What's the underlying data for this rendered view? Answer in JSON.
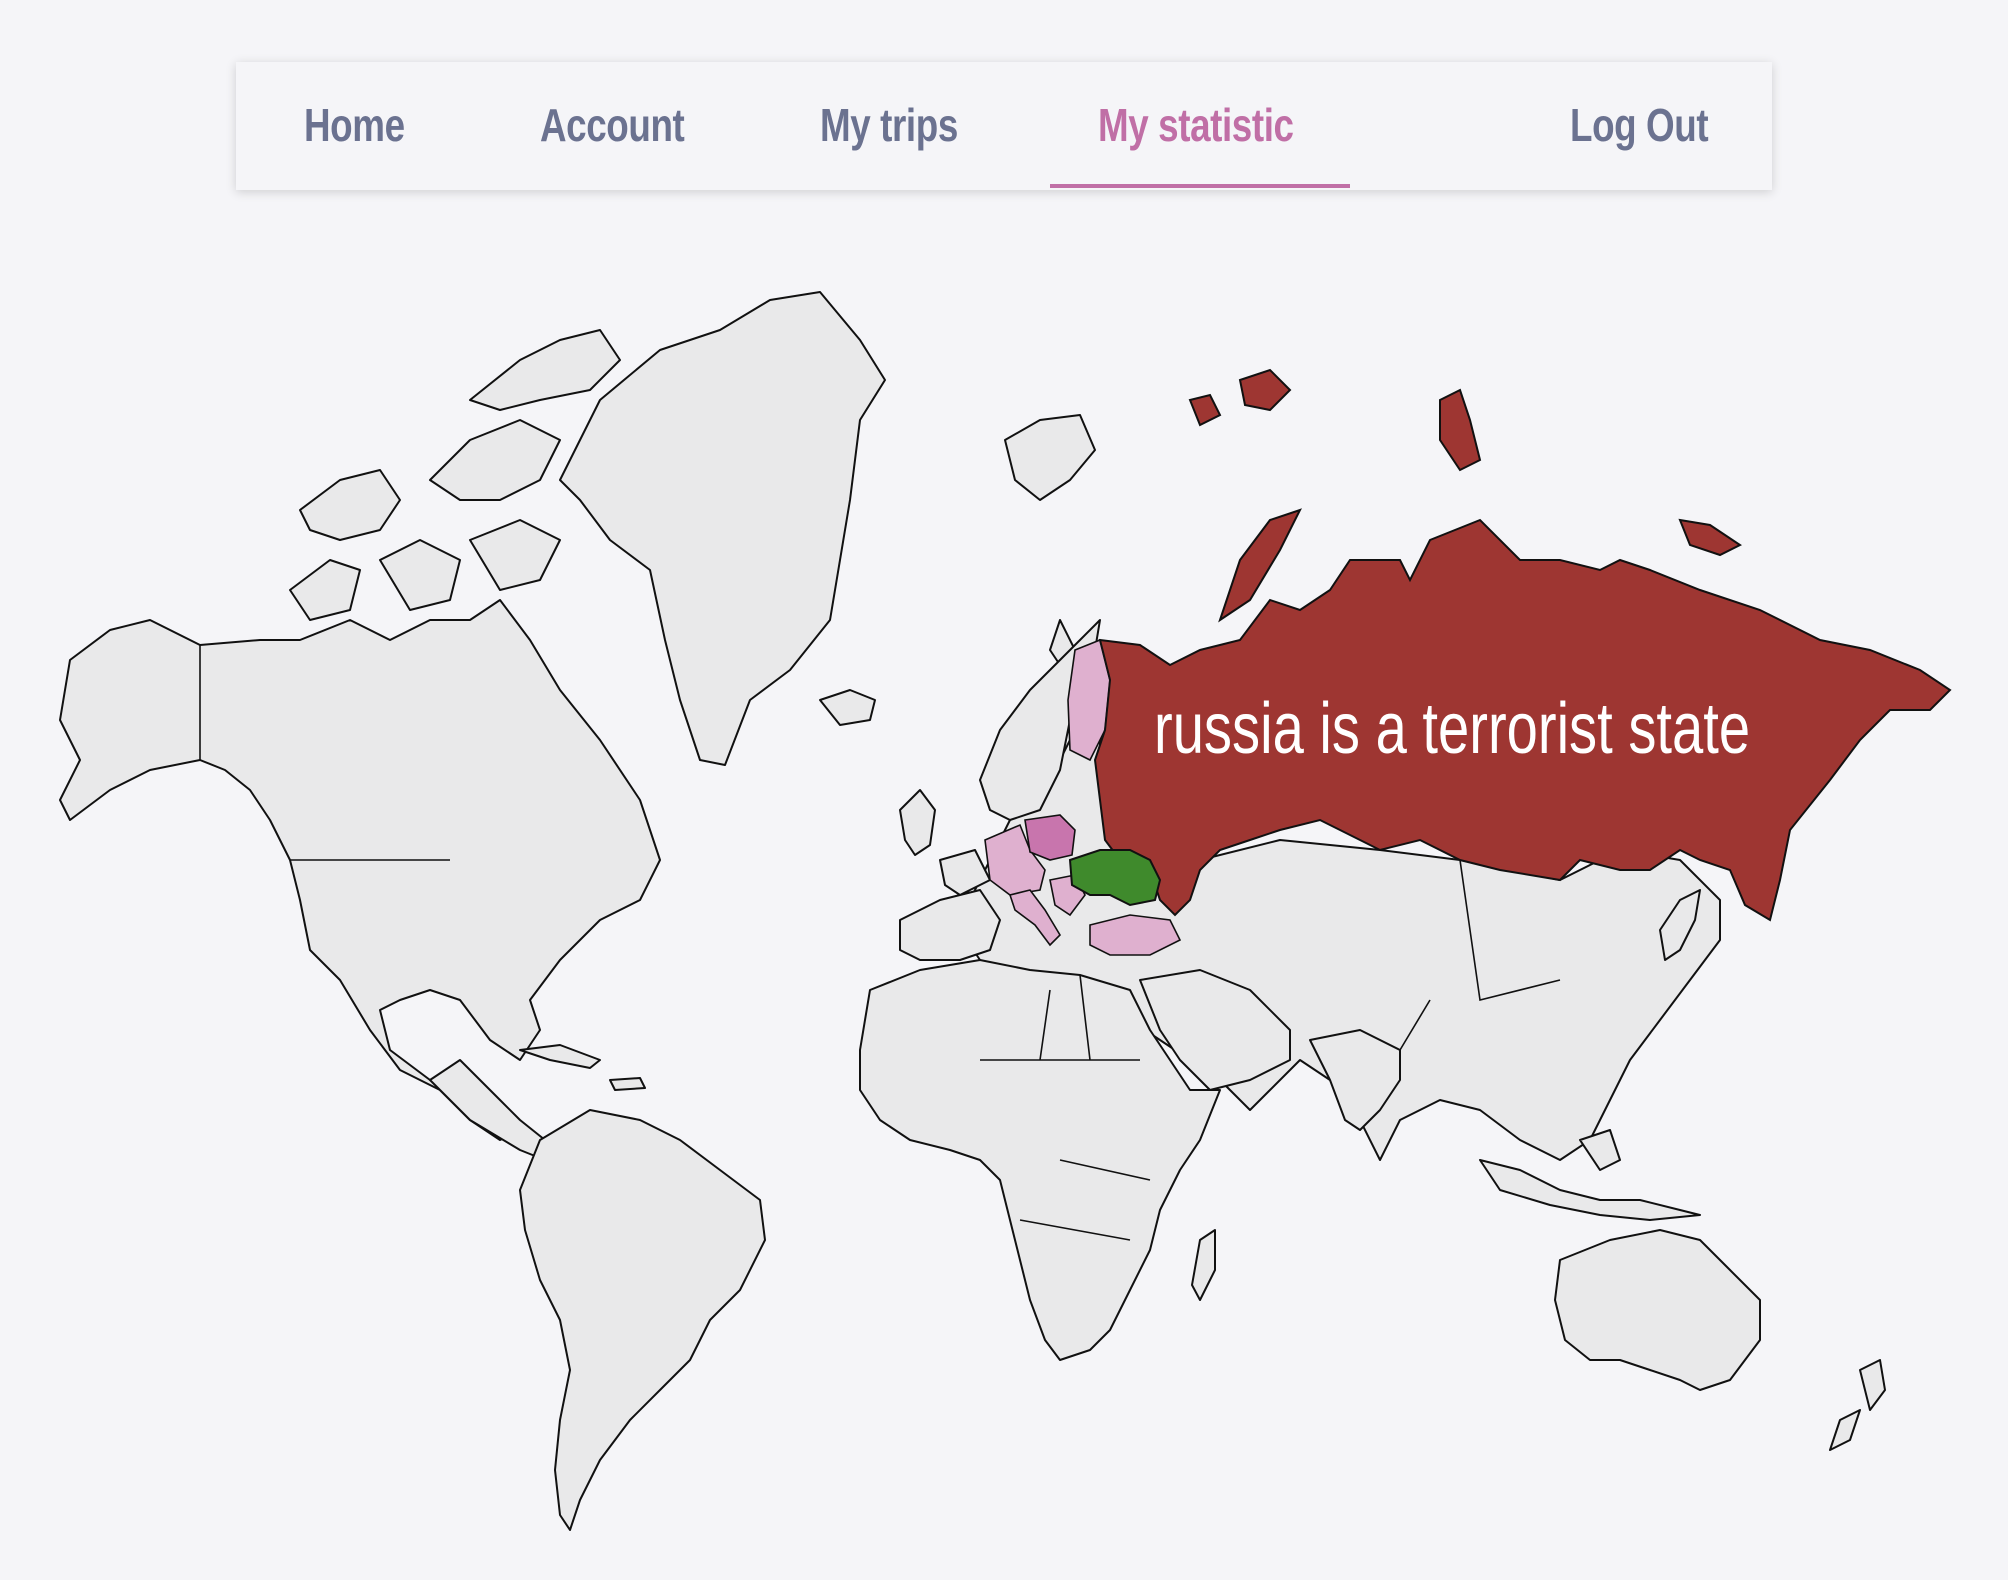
{
  "theme": {
    "nav_color": "#6b7290",
    "accent": "#c06fa6",
    "russia_color": "#9e3632",
    "ukraine_color": "#3f8a2c",
    "visited_light": "#dfb0cf",
    "visited_dark": "#c875ad",
    "land_color": "#e9e9ea"
  },
  "nav": {
    "items": [
      {
        "label": "Home",
        "active": false
      },
      {
        "label": "Account",
        "active": false
      },
      {
        "label": "My trips",
        "active": false
      },
      {
        "label": "My statistic",
        "active": true
      },
      {
        "label": "Log Out",
        "active": false
      }
    ]
  },
  "map": {
    "banner_text": "russia is a terrorist state"
  }
}
